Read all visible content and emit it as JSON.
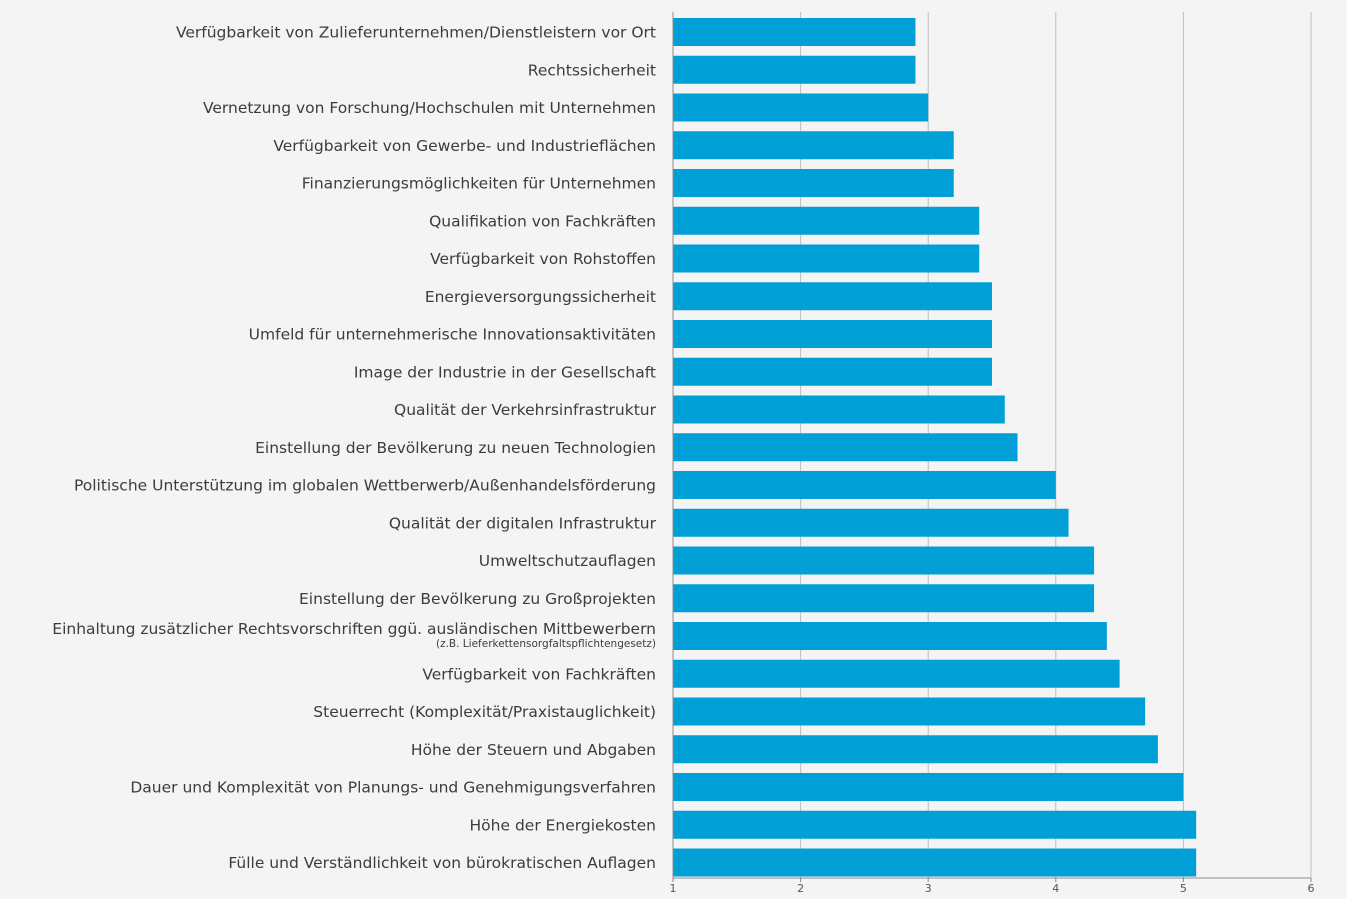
{
  "chart_data": {
    "type": "bar",
    "orientation": "horizontal",
    "categories": [
      "Verfügbarkeit von Zulieferunternehmen/Dienstleistern vor Ort",
      "Rechtssicherheit",
      "Vernetzung von Forschung/Hochschulen mit Unternehmen",
      "Verfügbarkeit von Gewerbe- und Industrieflächen",
      "Finanzierungsmöglichkeiten für Unternehmen",
      "Qualifikation von Fachkräften",
      "Verfügbarkeit von Rohstoffen",
      "Energieversorgungssicherheit",
      "Umfeld für unternehmerische Innovationsaktivitäten",
      "Image der Industrie in der Gesellschaft",
      "Qualität der Verkehrsinfrastruktur",
      "Einstellung der Bevölkerung zu neuen Technologien",
      "Politische Unterstützung im globalen Wettberwerb/Außenhandelsförderung",
      "Qualität der digitalen Infrastruktur",
      "Umweltschutzauflagen",
      "Einstellung der Bevölkerung zu Großprojekten",
      "Einhaltung zusätzlicher Rechtsvorschriften ggü. ausländischen Mittbewerbern",
      "Verfügbarkeit von Fachkräften",
      "Steuerrecht (Komplexität/Praxistauglichkeit)",
      "Höhe der Steuern und Abgaben",
      "Dauer und Komplexität von Planungs- und Genehmigungsverfahren",
      "Höhe der Energiekosten",
      "Fülle und Verständlichkeit von bürokratischen Auflagen"
    ],
    "category_notes": {
      "16": "(z.B. Lieferkettensorgfaltspflichtengesetz)"
    },
    "values": [
      2.9,
      2.9,
      3.0,
      3.2,
      3.2,
      3.4,
      3.4,
      3.5,
      3.5,
      3.5,
      3.6,
      3.7,
      4.0,
      4.1,
      4.3,
      4.3,
      4.4,
      4.5,
      4.7,
      4.8,
      5.0,
      5.1,
      5.1
    ],
    "xlim": [
      1,
      6
    ],
    "xticks": [
      "1",
      "2",
      "3",
      "4",
      "5",
      "6"
    ],
    "title": "",
    "xlabel": "",
    "ylabel": "",
    "grid": "vertical",
    "colors": {
      "bar": "#00a0d6",
      "grid": "#bfbfbf",
      "axis": "#8c8c8c",
      "background": "#f4f4f4",
      "label": "#3c3c3c"
    }
  }
}
